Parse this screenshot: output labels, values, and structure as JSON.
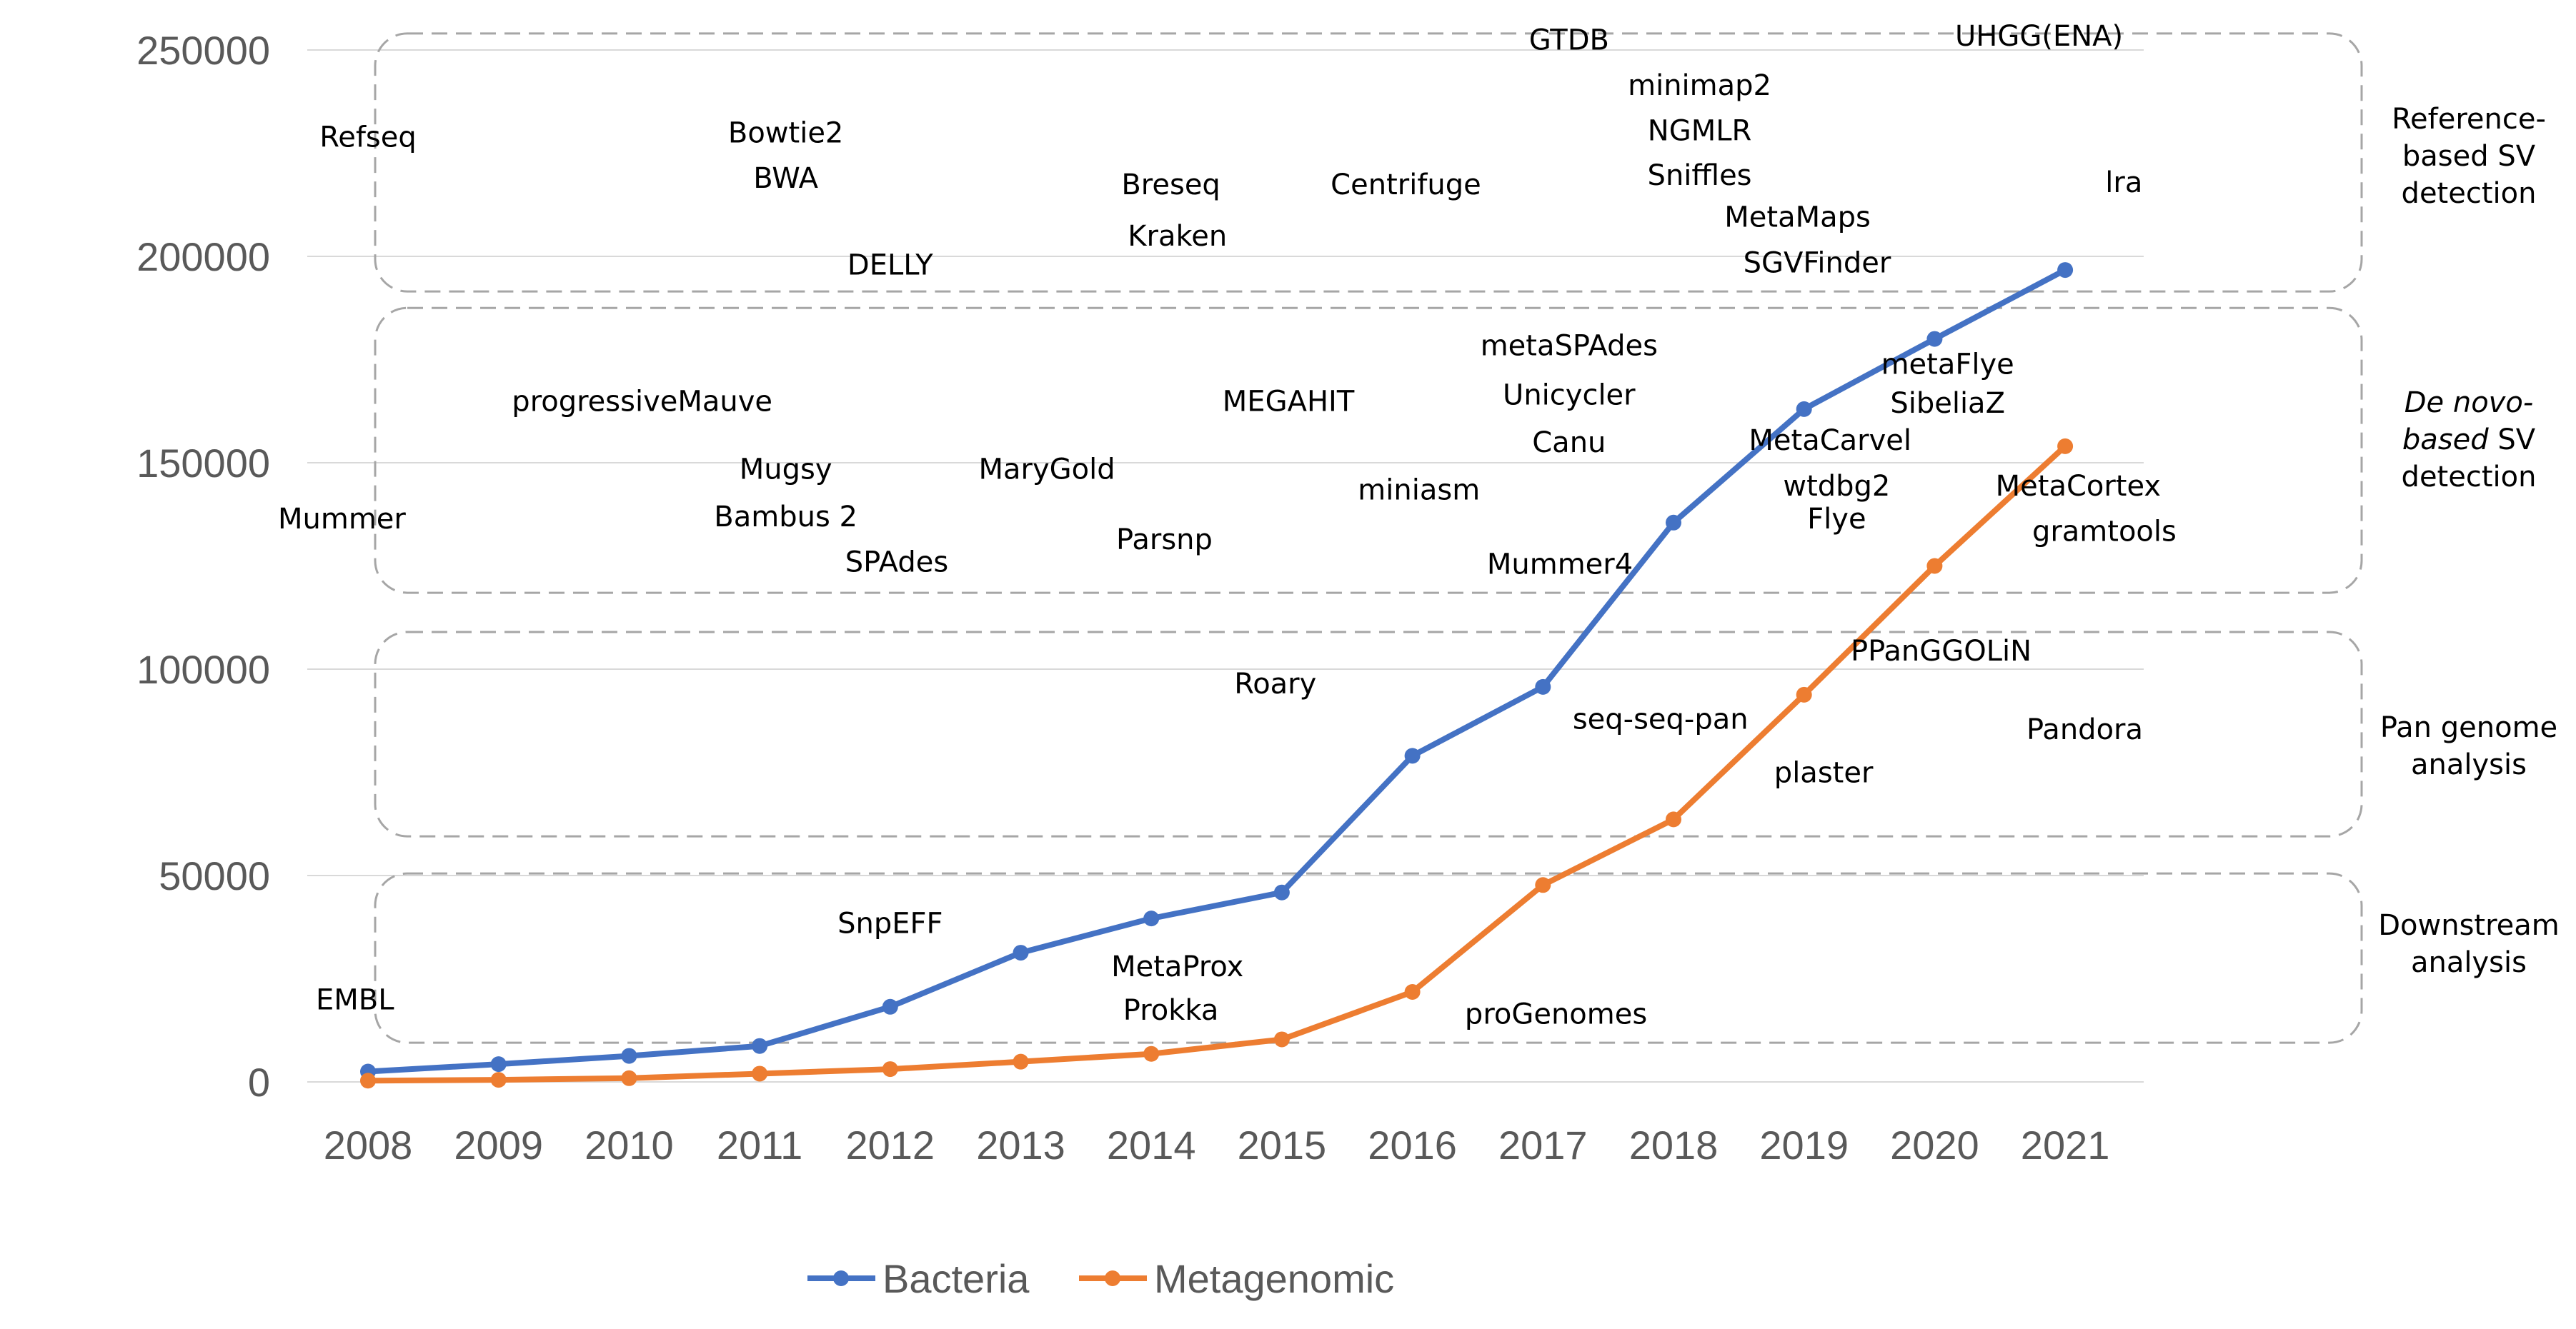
{
  "chart_data": {
    "type": "line",
    "x": [
      2008,
      2009,
      2010,
      2011,
      2012,
      2013,
      2014,
      2015,
      2016,
      2017,
      2018,
      2019,
      2020,
      2021
    ],
    "series": [
      {
        "name": "Bacteria",
        "color": "#4472c4",
        "values": [
          2500,
          4300,
          6300,
          8700,
          18200,
          31300,
          39600,
          45900,
          79000,
          95700,
          135500,
          163000,
          180000,
          196700
        ]
      },
      {
        "name": "Metagenomic",
        "color": "#ed7d31",
        "values": [
          300,
          500,
          900,
          2000,
          3100,
          4900,
          6800,
          10300,
          21800,
          47700,
          63600,
          93800,
          125000,
          154000
        ]
      }
    ],
    "ylim": [
      0,
      250000
    ],
    "yticks": [
      0,
      50000,
      100000,
      150000,
      200000,
      250000
    ],
    "ytick_labels": [
      "0",
      "50000",
      "100000",
      "150000",
      "200000",
      "250000"
    ],
    "xtick_labels": [
      "2008",
      "2009",
      "2010",
      "2011",
      "2012",
      "2013",
      "2014",
      "2015",
      "2016",
      "2017",
      "2018",
      "2019",
      "2020",
      "2021"
    ],
    "grid": true,
    "legend_position": "bottom",
    "groups": [
      {
        "lines": [
          "Reference-",
          "based SV",
          "detection"
        ]
      },
      {
        "lines": [
          "De novo-",
          "based SV",
          "detection"
        ],
        "italic_part": [
          "De novo-",
          "based"
        ]
      },
      {
        "lines": [
          "Pan genome",
          "analysis"
        ]
      },
      {
        "lines": [
          "Downstream",
          "analysis"
        ]
      }
    ],
    "annotations": [
      {
        "text": "Refseq",
        "x": 2008,
        "y": 229000
      },
      {
        "text": "Bowtie2",
        "x": 2011.2,
        "y": 230000
      },
      {
        "text": "BWA",
        "x": 2011.2,
        "y": 219000
      },
      {
        "text": "DELLY",
        "x": 2012,
        "y": 198000
      },
      {
        "text": "Breseq",
        "x": 2014.15,
        "y": 217500
      },
      {
        "text": "Kraken",
        "x": 2014.2,
        "y": 205000
      },
      {
        "text": "Centrifuge",
        "x": 2015.95,
        "y": 217500
      },
      {
        "text": "GTDB",
        "x": 2017.2,
        "y": 252500
      },
      {
        "text": "minimap2",
        "x": 2018.2,
        "y": 241500
      },
      {
        "text": "NGMLR",
        "x": 2018.2,
        "y": 230500
      },
      {
        "text": "Sniffles",
        "x": 2018.2,
        "y": 219700
      },
      {
        "text": "MetaMaps",
        "x": 2018.95,
        "y": 209600
      },
      {
        "text": "SGVFinder",
        "x": 2019.1,
        "y": 198500
      },
      {
        "text": "UHGG(ENA)",
        "x": 2020.8,
        "y": 253500
      },
      {
        "text": "lra",
        "x": 2021.45,
        "y": 218000
      },
      {
        "text": "progressiveMauve",
        "x": 2010.1,
        "y": 165000
      },
      {
        "text": "Mugsy",
        "x": 2011.2,
        "y": 148500
      },
      {
        "text": "Bambus 2",
        "x": 2011.2,
        "y": 137000
      },
      {
        "text": "SPAdes",
        "x": 2012.05,
        "y": 126000
      },
      {
        "text": "Mummer",
        "x": 2007.8,
        "y": 136500
      },
      {
        "text": "MaryGold",
        "x": 2013.2,
        "y": 148500
      },
      {
        "text": "Parsnp",
        "x": 2014.1,
        "y": 131500
      },
      {
        "text": "MEGAHIT",
        "x": 2015.05,
        "y": 165000
      },
      {
        "text": "miniasm",
        "x": 2016.05,
        "y": 143500
      },
      {
        "text": "metaSPAdes",
        "x": 2017.2,
        "y": 178500
      },
      {
        "text": "Unicycler",
        "x": 2017.2,
        "y": 166500
      },
      {
        "text": "Canu",
        "x": 2017.2,
        "y": 155000
      },
      {
        "text": "Mummer4",
        "x": 2017.13,
        "y": 125500
      },
      {
        "text": "metaFlye",
        "x": 2020.1,
        "y": 174000
      },
      {
        "text": "SibeliaZ",
        "x": 2020.1,
        "y": 164500
      },
      {
        "text": "MetaCarvel",
        "x": 2019.2,
        "y": 155500
      },
      {
        "text": "wtdbg2",
        "x": 2019.25,
        "y": 144500
      },
      {
        "text": "Flye",
        "x": 2019.25,
        "y": 136500
      },
      {
        "text": "MetaCortex",
        "x": 2021.1,
        "y": 144500
      },
      {
        "text": "gramtools",
        "x": 2021.3,
        "y": 133500
      },
      {
        "text": "Roary",
        "x": 2014.95,
        "y": 96500
      },
      {
        "text": "PPanGGOLiN",
        "x": 2020.05,
        "y": 104500
      },
      {
        "text": "seq-seq-pan",
        "x": 2017.9,
        "y": 88000
      },
      {
        "text": "Pandora",
        "x": 2021.15,
        "y": 85500
      },
      {
        "text": "plaster",
        "x": 2019.15,
        "y": 75000
      },
      {
        "text": "SnpEFF",
        "x": 2012,
        "y": 38500
      },
      {
        "text": "MetaProx",
        "x": 2014.2,
        "y": 28000
      },
      {
        "text": "Prokka",
        "x": 2014.15,
        "y": 17500
      },
      {
        "text": "EMBL",
        "x": 2007.9,
        "y": 20000
      },
      {
        "text": "proGenomes",
        "x": 2017.1,
        "y": 16500
      }
    ]
  }
}
